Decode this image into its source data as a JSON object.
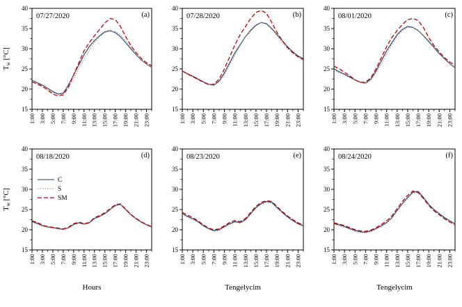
{
  "figure": {
    "ylabel": {
      "main": "T",
      "sub": "w",
      "unit": " [°C]"
    },
    "legend": [
      {
        "label": "C",
        "color": "#1f3a68",
        "dash": "",
        "width": 1.1
      },
      {
        "label": "S",
        "color": "#8f8f68",
        "dash": "1.3 2.2",
        "width": 1.2
      },
      {
        "label": "SM",
        "color": "#c00000",
        "dash": "6 3",
        "width": 1.3
      }
    ]
  },
  "chart_data": [
    {
      "type": "line",
      "panel": "(a)",
      "title": "07/27/2020",
      "xlabel": "",
      "show_ylabel": true,
      "show_legend": false,
      "ylim": [
        15,
        40
      ],
      "yticks": [
        15,
        20,
        25,
        30,
        35,
        40
      ],
      "xticks": [
        "1:00",
        "3:00",
        "5:00",
        "7:00",
        "9:00",
        "11:00",
        "13:00",
        "15:00",
        "17:00",
        "19:00",
        "21:00",
        "23:00"
      ],
      "x_note": "hourly values from 1:00 to 24:00",
      "series": [
        {
          "name": "C",
          "values": [
            22.2,
            21.6,
            21.0,
            20.2,
            19.4,
            18.8,
            19.0,
            21.0,
            23.5,
            26.0,
            28.5,
            30.5,
            32.0,
            33.2,
            34.2,
            34.5,
            34.0,
            33.0,
            31.5,
            30.0,
            28.5,
            27.2,
            26.2,
            25.4
          ]
        },
        {
          "name": "S",
          "values": [
            21.8,
            21.2,
            20.6,
            19.8,
            19.2,
            18.6,
            18.8,
            20.2,
            22.5,
            25.0,
            27.5,
            29.5,
            31.5,
            33.0,
            34.0,
            34.3,
            34.2,
            33.5,
            32.0,
            30.3,
            28.6,
            27.2,
            26.2,
            25.4
          ]
        },
        {
          "name": "SM",
          "values": [
            21.8,
            21.3,
            20.7,
            19.8,
            18.8,
            18.3,
            18.6,
            20.5,
            23.5,
            26.5,
            29.5,
            31.5,
            33.2,
            34.8,
            36.4,
            37.5,
            37.2,
            35.5,
            33.0,
            30.8,
            29.0,
            27.6,
            26.5,
            25.8
          ]
        }
      ]
    },
    {
      "type": "line",
      "panel": "(b)",
      "title": "07/28/2020",
      "xlabel": "",
      "show_ylabel": false,
      "show_legend": false,
      "ylim": [
        15,
        40
      ],
      "yticks": [
        15,
        20,
        25,
        30,
        35,
        40
      ],
      "xticks": [
        "1:00",
        "3:00",
        "5:00",
        "7:00",
        "9:00",
        "11:00",
        "13:00",
        "15:00",
        "17:00",
        "19:00",
        "21:00",
        "23:00"
      ],
      "x_note": "hourly values from 1:00 to 24:00",
      "series": [
        {
          "name": "C",
          "values": [
            24.5,
            23.8,
            23.2,
            22.5,
            21.8,
            21.2,
            21.0,
            22.0,
            24.0,
            26.5,
            29.0,
            31.0,
            33.0,
            34.5,
            35.8,
            36.5,
            36.2,
            35.0,
            33.5,
            32.0,
            30.5,
            29.2,
            28.2,
            27.5
          ]
        },
        {
          "name": "S",
          "values": [
            24.3,
            23.6,
            23.0,
            22.3,
            21.7,
            21.1,
            20.9,
            21.8,
            23.5,
            26.0,
            28.5,
            30.8,
            33.0,
            34.8,
            36.0,
            36.5,
            36.0,
            34.8,
            33.2,
            31.5,
            30.0,
            28.8,
            27.9,
            27.2
          ]
        },
        {
          "name": "SM",
          "values": [
            24.5,
            23.8,
            23.1,
            22.4,
            21.7,
            21.1,
            21.2,
            22.5,
            25.0,
            28.0,
            31.0,
            33.5,
            35.5,
            37.5,
            39.0,
            39.5,
            38.8,
            36.5,
            34.0,
            32.0,
            30.3,
            29.0,
            28.0,
            27.3
          ]
        }
      ]
    },
    {
      "type": "line",
      "panel": "(c)",
      "title": "08/01/2020",
      "xlabel": "",
      "show_ylabel": false,
      "show_legend": false,
      "ylim": [
        15,
        40
      ],
      "yticks": [
        15,
        20,
        25,
        30,
        35,
        40
      ],
      "xticks": [
        "1:00",
        "3:00",
        "5:00",
        "7:00",
        "9:00",
        "11:00",
        "13:00",
        "15:00",
        "17:00",
        "19:00",
        "21:00",
        "23:00"
      ],
      "x_note": "hourly values from 1:00 to 24:00",
      "series": [
        {
          "name": "C",
          "values": [
            25.0,
            24.3,
            23.7,
            23.0,
            22.3,
            21.7,
            21.5,
            22.5,
            24.5,
            27.0,
            29.5,
            31.5,
            33.5,
            34.8,
            35.5,
            35.3,
            34.5,
            33.2,
            31.8,
            30.3,
            28.8,
            27.5,
            26.3,
            25.3
          ]
        },
        {
          "name": "S",
          "values": [
            24.7,
            24.0,
            23.4,
            22.8,
            22.2,
            21.6,
            21.4,
            22.2,
            24.0,
            26.3,
            28.8,
            31.0,
            33.0,
            34.5,
            35.3,
            35.2,
            34.5,
            33.3,
            32.0,
            30.5,
            29.0,
            27.6,
            26.4,
            25.4
          ]
        },
        {
          "name": "SM",
          "values": [
            25.7,
            25.0,
            24.2,
            23.3,
            22.3,
            21.7,
            21.7,
            22.8,
            25.0,
            27.8,
            30.5,
            32.8,
            34.5,
            36.0,
            37.2,
            37.5,
            37.0,
            35.2,
            32.8,
            30.8,
            29.2,
            27.8,
            26.7,
            25.9
          ]
        }
      ]
    },
    {
      "type": "line",
      "panel": "(d)",
      "title": "08/18/2020",
      "xlabel": "Hours",
      "show_ylabel": true,
      "show_legend": true,
      "ylim": [
        15,
        40
      ],
      "yticks": [
        15,
        20,
        25,
        30,
        35,
        40
      ],
      "xticks": [
        "1:00",
        "3:00",
        "5:00",
        "7:00",
        "9:00",
        "11:00",
        "13:00",
        "15:00",
        "17:00",
        "19:00",
        "21:00",
        "23:00"
      ],
      "x_note": "hourly values from 1:00 to 24:00",
      "series": [
        {
          "name": "C",
          "values": [
            22.0,
            21.6,
            21.0,
            20.7,
            20.5,
            20.3,
            20.1,
            20.5,
            21.3,
            21.7,
            21.4,
            21.7,
            22.8,
            23.3,
            24.0,
            25.0,
            26.0,
            26.3,
            25.0,
            23.7,
            22.7,
            21.9,
            21.2,
            20.7
          ]
        },
        {
          "name": "S",
          "values": [
            21.8,
            21.4,
            20.9,
            20.6,
            20.4,
            20.2,
            20.0,
            20.4,
            21.2,
            21.6,
            21.3,
            21.6,
            22.7,
            23.2,
            23.9,
            24.9,
            25.9,
            26.2,
            24.9,
            23.6,
            22.6,
            21.8,
            21.1,
            20.6
          ]
        },
        {
          "name": "SM",
          "values": [
            22.2,
            21.8,
            21.1,
            20.8,
            20.6,
            20.4,
            20.2,
            20.6,
            21.5,
            21.9,
            21.5,
            21.8,
            23.0,
            23.5,
            24.2,
            25.2,
            26.2,
            26.4,
            25.1,
            23.8,
            22.8,
            22.0,
            21.3,
            20.8
          ]
        }
      ]
    },
    {
      "type": "line",
      "panel": "(e)",
      "title": "08/23/2020",
      "xlabel": "Tengelycim",
      "show_ylabel": false,
      "show_legend": false,
      "ylim": [
        15,
        40
      ],
      "yticks": [
        15,
        20,
        25,
        30,
        35,
        40
      ],
      "xticks": [
        "1:00",
        "3:00",
        "5:00",
        "7:00",
        "9:00",
        "11:00",
        "13:00",
        "15:00",
        "17:00",
        "19:00",
        "21:00",
        "23:00"
      ],
      "x_note": "hourly values from 1:00 to 24:00",
      "series": [
        {
          "name": "C",
          "values": [
            24.0,
            23.3,
            22.7,
            22.0,
            21.0,
            20.3,
            19.8,
            20.0,
            20.8,
            21.5,
            22.0,
            21.8,
            22.5,
            24.0,
            25.5,
            26.5,
            27.0,
            26.8,
            25.5,
            24.3,
            23.2,
            22.3,
            21.5,
            21.0
          ]
        },
        {
          "name": "S",
          "values": [
            23.8,
            23.1,
            22.5,
            21.8,
            20.8,
            20.1,
            19.6,
            19.8,
            20.6,
            21.3,
            21.8,
            21.6,
            22.3,
            23.8,
            25.3,
            26.3,
            26.8,
            26.6,
            25.3,
            24.1,
            23.0,
            22.1,
            21.3,
            20.8
          ]
        },
        {
          "name": "SM",
          "values": [
            24.3,
            23.6,
            23.0,
            22.2,
            21.2,
            20.4,
            20.0,
            20.2,
            21.0,
            21.8,
            22.3,
            22.0,
            22.8,
            24.3,
            25.8,
            26.8,
            27.2,
            27.0,
            25.7,
            24.5,
            23.4,
            22.5,
            21.7,
            21.2
          ]
        }
      ]
    },
    {
      "type": "line",
      "panel": "(f)",
      "title": "08/24/2020",
      "xlabel": "Tengelycim",
      "show_ylabel": false,
      "show_legend": false,
      "ylim": [
        15,
        40
      ],
      "yticks": [
        15,
        20,
        25,
        30,
        35,
        40
      ],
      "xticks": [
        "1:00",
        "3:00",
        "5:00",
        "7:00",
        "9:00",
        "11:00",
        "13:00",
        "15:00",
        "17:00",
        "19:00",
        "21:00",
        "23:00"
      ],
      "x_note": "hourly values from 1:00 to 24:00",
      "series": [
        {
          "name": "C",
          "values": [
            21.5,
            21.2,
            20.8,
            20.3,
            19.8,
            19.5,
            19.4,
            19.7,
            20.3,
            21.0,
            21.8,
            23.0,
            24.8,
            26.5,
            28.0,
            29.3,
            29.5,
            28.0,
            26.3,
            25.0,
            24.0,
            23.0,
            22.2,
            21.5
          ]
        },
        {
          "name": "S",
          "values": [
            21.3,
            21.0,
            20.6,
            20.1,
            19.6,
            19.3,
            19.2,
            19.5,
            20.1,
            20.8,
            21.6,
            22.8,
            24.6,
            26.3,
            27.8,
            29.1,
            29.3,
            27.8,
            26.1,
            24.8,
            23.8,
            22.8,
            22.0,
            21.3
          ]
        },
        {
          "name": "SM",
          "values": [
            21.7,
            21.4,
            21.0,
            20.5,
            20.0,
            19.7,
            19.6,
            19.9,
            20.5,
            21.3,
            22.2,
            23.4,
            25.2,
            27.0,
            28.5,
            29.6,
            29.2,
            27.7,
            26.0,
            24.7,
            23.7,
            22.7,
            21.9,
            21.2
          ]
        }
      ]
    }
  ]
}
